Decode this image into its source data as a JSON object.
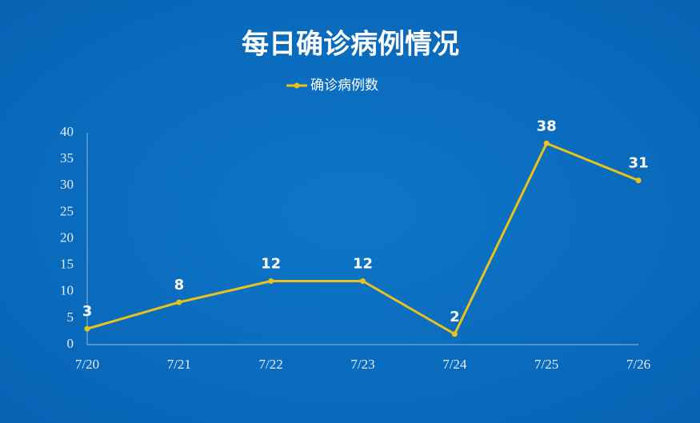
{
  "chart_data": {
    "type": "line",
    "title": "每日确诊病例情况",
    "categories": [
      "7/20",
      "7/21",
      "7/22",
      "7/23",
      "7/24",
      "7/25",
      "7/26"
    ],
    "series": [
      {
        "name": "确诊病例数",
        "color": "#e9c21b",
        "values": [
          3,
          8,
          12,
          12,
          2,
          38,
          31
        ]
      }
    ],
    "ylim": [
      0,
      40
    ],
    "yticks": [
      0,
      5,
      10,
      15,
      20,
      25,
      30,
      35,
      40
    ],
    "legend": "top",
    "data_labels": true
  }
}
